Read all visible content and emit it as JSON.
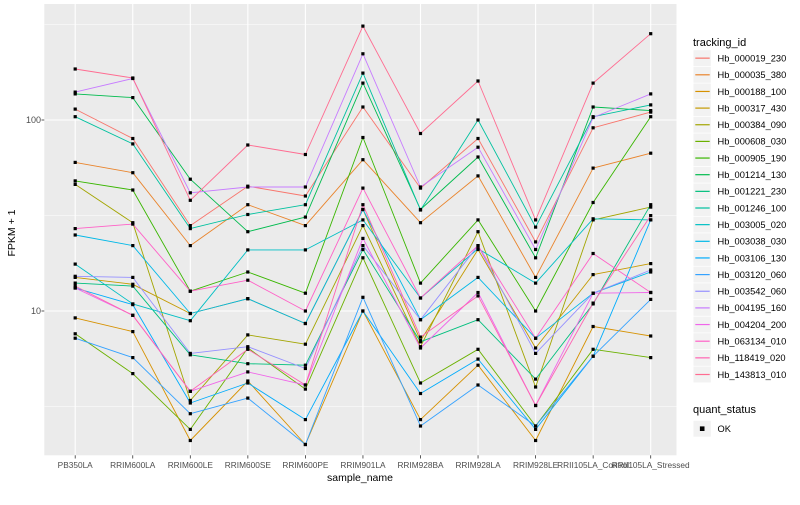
{
  "figure": {
    "background": "#FFFFFF",
    "panel_background": "#EBEBEB",
    "grid_color": "#FFFFFF",
    "tick_color": "#333333",
    "axis_text_color": "#4D4D4D",
    "point_color": "#000000",
    "legend_key_background": "#F2F2F2"
  },
  "chart_data": {
    "type": "line",
    "title": "",
    "xlabel": "sample_name",
    "ylabel": "FPKM + 1",
    "y_scale": "log10",
    "grid": true,
    "legend_position": "right",
    "ylim": [
      1.76,
      405
    ],
    "y_ticks": [
      100,
      10
    ],
    "y_tick_labels": [
      "100",
      "10"
    ],
    "y_minor_ticks": [
      316.23,
      31.623,
      3.1623
    ],
    "categories": [
      "PB350LA",
      "RRIM600LA",
      "RRIM600LE",
      "RRIM600SE",
      "RRIM600PE",
      "RRIM901LA",
      "RRIM928BA",
      "RRIM928LA",
      "RRIM928LE",
      "RRII105LA_Control",
      "RRII105LA_Stressed"
    ],
    "series": [
      {
        "name": "Hb_000019_230",
        "color": "#F8766D",
        "values": [
          114,
          80,
          28,
          45,
          40,
          117,
          44,
          80,
          23,
          91,
          110
        ]
      },
      {
        "name": "Hb_000035_380",
        "color": "#E9842C",
        "values": [
          60,
          53,
          22,
          36,
          28,
          62,
          29,
          51,
          15,
          56,
          67
        ]
      },
      {
        "name": "Hb_000188_100",
        "color": "#D69100",
        "values": [
          9.2,
          7.8,
          2.1,
          4.3,
          2.0,
          10,
          2.7,
          5.2,
          2.1,
          8.3,
          7.4
        ]
      },
      {
        "name": "Hb_000317_430",
        "color": "#C49A00",
        "values": [
          15,
          13.8,
          9.7,
          11.6,
          8.6,
          34,
          7.0,
          21,
          6.4,
          15.5,
          17.7
        ]
      },
      {
        "name": "Hb_000384_090",
        "color": "#A3A500",
        "values": [
          46,
          29,
          3.4,
          7.5,
          6.7,
          28,
          6.5,
          26,
          4.0,
          30,
          35
        ]
      },
      {
        "name": "Hb_000608_030",
        "color": "#6BB100",
        "values": [
          7.6,
          4.7,
          2.4,
          6.4,
          3.9,
          19,
          4.2,
          6.3,
          2.5,
          6.3,
          5.7
        ]
      },
      {
        "name": "Hb_000905_190",
        "color": "#39B600",
        "values": [
          48,
          43,
          12.7,
          16,
          12.4,
          81,
          14,
          30,
          10,
          37,
          104
        ]
      },
      {
        "name": "Hb_001214_130",
        "color": "#00BB4E",
        "values": [
          137,
          131,
          49,
          26,
          31,
          156,
          34,
          64,
          19,
          117,
          112
        ]
      },
      {
        "name": "Hb_001221_230",
        "color": "#00BF7D",
        "values": [
          14,
          13.5,
          5.9,
          5.3,
          5.2,
          21,
          6.9,
          9.0,
          4.4,
          10.9,
          36
        ]
      },
      {
        "name": "Hb_001246_100",
        "color": "#00C19F",
        "values": [
          104,
          75,
          27,
          32,
          36,
          176,
          33.8,
          100,
          27.5,
          104,
          120
        ]
      },
      {
        "name": "Hb_003005_020",
        "color": "#00BFC4",
        "values": [
          17.6,
          10.9,
          8.9,
          20.9,
          20.9,
          30,
          11.7,
          21.2,
          14,
          30.4,
          30
        ]
      },
      {
        "name": "Hb_003038_030",
        "color": "#00B8E7",
        "values": [
          25,
          22,
          9.7,
          11.6,
          8.6,
          34,
          9.0,
          15,
          7.2,
          12.4,
          16
        ]
      },
      {
        "name": "Hb_003106_130",
        "color": "#00ACFC",
        "values": [
          13.2,
          10.8,
          3.3,
          4.2,
          2.7,
          10,
          3.7,
          5.6,
          2.4,
          5.8,
          30
        ]
      },
      {
        "name": "Hb_003120_060",
        "color": "#35A2FF",
        "values": [
          7.2,
          5.7,
          2.9,
          3.5,
          2.0,
          11.8,
          2.5,
          4.1,
          2.5,
          5.8,
          11.5
        ]
      },
      {
        "name": "Hb_003542_060",
        "color": "#9590FF",
        "values": [
          15.2,
          15.0,
          6.0,
          6.5,
          5.0,
          22,
          9.0,
          22,
          6.0,
          12.4,
          16.4
        ]
      },
      {
        "name": "Hb_004195_160",
        "color": "#C77CFF",
        "values": [
          140,
          165,
          41.6,
          44.6,
          44.6,
          222,
          44.6,
          72,
          21,
          103,
          137
        ]
      },
      {
        "name": "Hb_004204_200",
        "color": "#F066EA",
        "values": [
          13.2,
          9.5,
          3.8,
          4.8,
          4.1,
          24,
          6.4,
          12.5,
          3.2,
          12.4,
          12.5
        ]
      },
      {
        "name": "Hb_063134_010",
        "color": "#FF61C7",
        "values": [
          27,
          28.5,
          12.7,
          14.5,
          10,
          44,
          11.7,
          22,
          7.2,
          20,
          12.5
        ]
      },
      {
        "name": "Hb_118419_020",
        "color": "#FF64B3",
        "values": [
          13.5,
          9.5,
          3.8,
          6.3,
          4.1,
          36,
          7.3,
          12,
          3.2,
          11,
          31.6
        ]
      },
      {
        "name": "Hb_143813_010",
        "color": "#FF6C91",
        "values": [
          185,
          166,
          38,
          74,
          66,
          310,
          85,
          160,
          30,
          156,
          283
        ]
      }
    ],
    "legend": {
      "color_title": "tracking_id",
      "shape_title": "quant_status",
      "shape_items": [
        {
          "label": "OK",
          "marker": "black-square"
        }
      ]
    }
  }
}
